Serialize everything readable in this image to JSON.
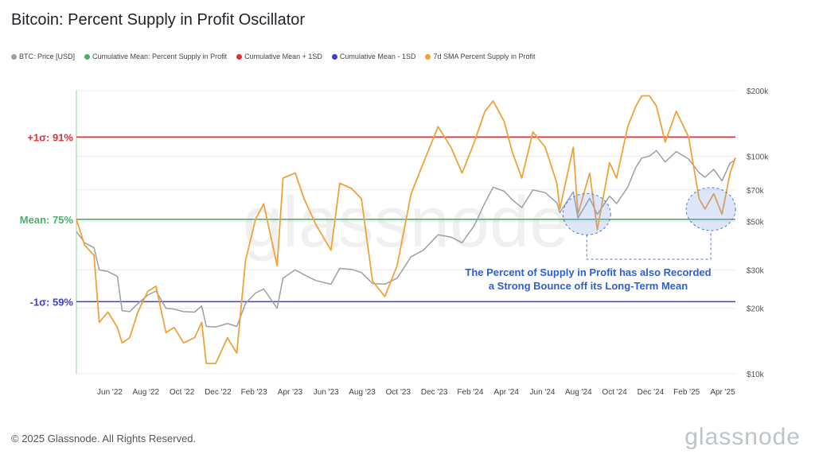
{
  "title": "Bitcoin: Percent Supply in Profit Oscillator",
  "legend": [
    {
      "label": "BTC: Price [USD]",
      "color": "#9aa0a6"
    },
    {
      "label": "Cumulative Mean: Percent Supply in Profit",
      "color": "#4caf6a"
    },
    {
      "label": "Cumulative Mean + 1SD",
      "color": "#e03232"
    },
    {
      "label": "Cumulative Mean - 1SD",
      "color": "#3f3fd0"
    },
    {
      "label": "7d SMA Percent Supply in Profit",
      "color": "#f0a23a"
    }
  ],
  "footer": "© 2025 Glassnode. All Rights Reserved.",
  "brand": "glassnode",
  "chart_data": {
    "type": "line",
    "x_ticks": [
      "Jun '22",
      "Aug '22",
      "Oct '22",
      "Dec '22",
      "Feb '23",
      "Apr '23",
      "Jun '23",
      "Aug '23",
      "Oct '23",
      "Dec '23",
      "Feb '24",
      "Apr '24",
      "Jun '24",
      "Aug '24",
      "Oct '24",
      "Dec '24",
      "Feb '25",
      "Apr '25"
    ],
    "y_right_ticks": [
      "$200k",
      "$100k",
      "$70k",
      "$50k",
      "$30k",
      "$20k",
      "$10k"
    ],
    "y_right_scale": "log",
    "y_right_range": [
      10000,
      200000
    ],
    "y_left_range_percent": [
      45,
      100
    ],
    "reference_lines": [
      {
        "label": "+1σ: 91%",
        "value": 91,
        "color": "#e03232"
      },
      {
        "label": "Mean: 75%",
        "value": 75,
        "color": "#4caf6a"
      },
      {
        "label": "-1σ: 59%",
        "value": 59,
        "color": "#3f3fd0"
      }
    ],
    "annotation": "The Percent of Supply in Profit has also Recorded a Strong Bounce off its Long-Term Mean",
    "x_range": [
      "2022-04-01",
      "2025-05-01"
    ],
    "series": [
      {
        "name": "BTC: Price [USD]",
        "color": "#9aa0a6",
        "points": [
          [
            "2022-04-01",
            45000
          ],
          [
            "2022-04-15",
            40000
          ],
          [
            "2022-05-01",
            38000
          ],
          [
            "2022-05-10",
            30000
          ],
          [
            "2022-05-25",
            29500
          ],
          [
            "2022-06-10",
            28000
          ],
          [
            "2022-06-18",
            19500
          ],
          [
            "2022-07-01",
            19300
          ],
          [
            "2022-07-15",
            21000
          ],
          [
            "2022-08-01",
            23000
          ],
          [
            "2022-08-15",
            24000
          ],
          [
            "2022-09-01",
            20000
          ],
          [
            "2022-09-15",
            19800
          ],
          [
            "2022-10-01",
            19300
          ],
          [
            "2022-10-20",
            19200
          ],
          [
            "2022-11-01",
            20500
          ],
          [
            "2022-11-09",
            16500
          ],
          [
            "2022-11-25",
            16400
          ],
          [
            "2022-12-15",
            17000
          ],
          [
            "2022-12-31",
            16500
          ],
          [
            "2023-01-15",
            21000
          ],
          [
            "2023-02-01",
            23500
          ],
          [
            "2023-02-15",
            24500
          ],
          [
            "2023-03-10",
            20000
          ],
          [
            "2023-03-20",
            27500
          ],
          [
            "2023-04-10",
            30000
          ],
          [
            "2023-04-25",
            28500
          ],
          [
            "2023-05-15",
            26800
          ],
          [
            "2023-06-10",
            25800
          ],
          [
            "2023-06-25",
            30500
          ],
          [
            "2023-07-15",
            30200
          ],
          [
            "2023-08-01",
            29200
          ],
          [
            "2023-08-20",
            26000
          ],
          [
            "2023-09-10",
            25800
          ],
          [
            "2023-10-01",
            27500
          ],
          [
            "2023-10-25",
            34500
          ],
          [
            "2023-11-15",
            37000
          ],
          [
            "2023-12-10",
            43500
          ],
          [
            "2024-01-01",
            42500
          ],
          [
            "2024-01-20",
            40000
          ],
          [
            "2024-02-10",
            48000
          ],
          [
            "2024-02-28",
            61000
          ],
          [
            "2024-03-13",
            72000
          ],
          [
            "2024-04-01",
            69000
          ],
          [
            "2024-04-15",
            63000
          ],
          [
            "2024-05-01",
            58000
          ],
          [
            "2024-05-20",
            70000
          ],
          [
            "2024-06-10",
            68000
          ],
          [
            "2024-06-30",
            61000
          ],
          [
            "2024-07-05",
            55000
          ],
          [
            "2024-07-28",
            68500
          ],
          [
            "2024-08-05",
            52000
          ],
          [
            "2024-08-25",
            64000
          ],
          [
            "2024-09-07",
            54000
          ],
          [
            "2024-09-28",
            65500
          ],
          [
            "2024-10-10",
            60500
          ],
          [
            "2024-10-29",
            72000
          ],
          [
            "2024-11-12",
            89000
          ],
          [
            "2024-11-22",
            98000
          ],
          [
            "2024-12-05",
            100000
          ],
          [
            "2024-12-17",
            106000
          ],
          [
            "2025-01-01",
            94000
          ],
          [
            "2025-01-20",
            105000
          ],
          [
            "2025-02-10",
            97000
          ],
          [
            "2025-02-28",
            84000
          ],
          [
            "2025-03-10",
            80000
          ],
          [
            "2025-03-25",
            87000
          ],
          [
            "2025-04-08",
            77000
          ],
          [
            "2025-04-22",
            93000
          ],
          [
            "2025-05-01",
            96000
          ]
        ]
      },
      {
        "name": "7d SMA Percent Supply in Profit",
        "color": "#f0a23a",
        "points": [
          [
            "2022-04-01",
            75
          ],
          [
            "2022-04-15",
            70
          ],
          [
            "2022-05-01",
            68
          ],
          [
            "2022-05-10",
            55
          ],
          [
            "2022-05-25",
            57
          ],
          [
            "2022-06-10",
            54
          ],
          [
            "2022-06-18",
            51
          ],
          [
            "2022-07-01",
            52
          ],
          [
            "2022-07-15",
            57
          ],
          [
            "2022-08-01",
            61
          ],
          [
            "2022-08-15",
            62
          ],
          [
            "2022-09-01",
            53
          ],
          [
            "2022-09-15",
            54
          ],
          [
            "2022-10-01",
            51
          ],
          [
            "2022-10-20",
            52
          ],
          [
            "2022-11-01",
            55
          ],
          [
            "2022-11-09",
            47
          ],
          [
            "2022-11-25",
            47
          ],
          [
            "2022-12-15",
            52
          ],
          [
            "2022-12-31",
            49
          ],
          [
            "2023-01-15",
            67
          ],
          [
            "2023-02-01",
            75
          ],
          [
            "2023-02-15",
            78
          ],
          [
            "2023-03-10",
            66
          ],
          [
            "2023-03-20",
            83
          ],
          [
            "2023-04-10",
            84
          ],
          [
            "2023-04-25",
            79
          ],
          [
            "2023-05-15",
            74
          ],
          [
            "2023-06-10",
            69
          ],
          [
            "2023-06-25",
            82
          ],
          [
            "2023-07-15",
            81
          ],
          [
            "2023-08-01",
            79
          ],
          [
            "2023-08-20",
            63
          ],
          [
            "2023-09-10",
            60
          ],
          [
            "2023-10-01",
            66
          ],
          [
            "2023-10-25",
            80
          ],
          [
            "2023-11-15",
            86
          ],
          [
            "2023-12-10",
            93
          ],
          [
            "2024-01-01",
            89
          ],
          [
            "2024-01-20",
            84
          ],
          [
            "2024-02-10",
            90
          ],
          [
            "2024-02-28",
            96
          ],
          [
            "2024-03-13",
            98
          ],
          [
            "2024-04-01",
            94
          ],
          [
            "2024-04-15",
            88
          ],
          [
            "2024-05-01",
            83
          ],
          [
            "2024-05-20",
            92
          ],
          [
            "2024-06-10",
            89
          ],
          [
            "2024-06-30",
            82
          ],
          [
            "2024-07-05",
            77
          ],
          [
            "2024-07-28",
            89
          ],
          [
            "2024-08-05",
            76
          ],
          [
            "2024-08-25",
            84
          ],
          [
            "2024-09-07",
            73
          ],
          [
            "2024-09-28",
            86
          ],
          [
            "2024-10-10",
            83
          ],
          [
            "2024-10-29",
            93
          ],
          [
            "2024-11-12",
            97
          ],
          [
            "2024-11-22",
            99
          ],
          [
            "2024-12-05",
            99
          ],
          [
            "2024-12-17",
            97
          ],
          [
            "2025-01-01",
            90
          ],
          [
            "2025-01-20",
            96
          ],
          [
            "2025-02-10",
            91
          ],
          [
            "2025-02-28",
            79
          ],
          [
            "2025-03-10",
            77
          ],
          [
            "2025-03-25",
            80
          ],
          [
            "2025-04-08",
            76
          ],
          [
            "2025-04-22",
            84
          ],
          [
            "2025-05-01",
            87
          ]
        ]
      }
    ]
  }
}
